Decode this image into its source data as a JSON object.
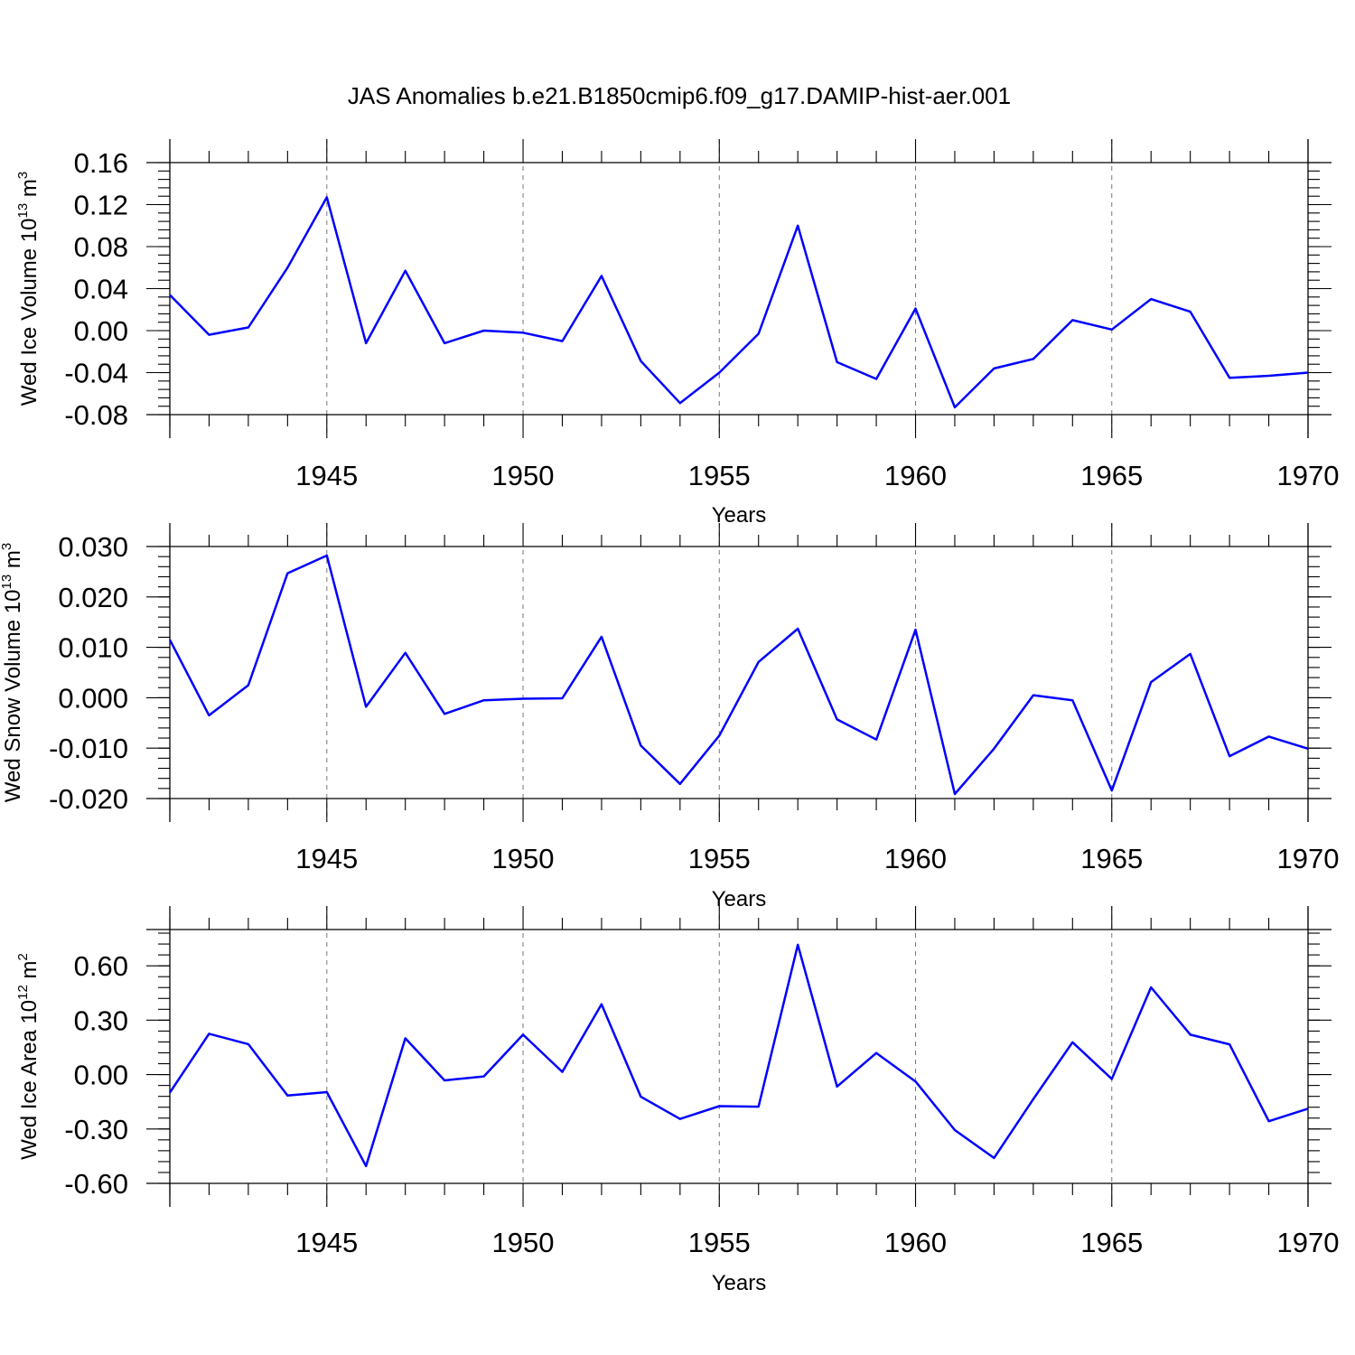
{
  "title": "JAS Anomalies b.e21.B1850cmip6.f09_g17.DAMIP-hist-aer.001",
  "colors": {
    "series": "#0000ff",
    "grid": "#777777",
    "axis": "#000000"
  },
  "chart_data": [
    {
      "type": "line",
      "ylabel": {
        "main": "Wed Ice Volume 10",
        "exp": "13",
        "unit": " m",
        "unit_exp": "3"
      },
      "xlabel": "Years",
      "xlim": [
        1941,
        1970
      ],
      "ylim": [
        -0.08,
        0.16
      ],
      "yticks": [
        -0.08,
        -0.04,
        0.0,
        0.04,
        0.08,
        0.12,
        0.16
      ],
      "ytick_labels": [
        "-0.08",
        "-0.04",
        "0.00",
        "0.04",
        "0.08",
        "0.12",
        "0.16"
      ],
      "yminor_step": 0.008,
      "xticks": [
        1945,
        1950,
        1955,
        1960,
        1965,
        1970
      ],
      "xtick_labels": [
        "1945",
        "1950",
        "1955",
        "1960",
        "1965",
        "1970"
      ],
      "grid": "x-major dashed",
      "x": [
        1941,
        1942,
        1943,
        1944,
        1945,
        1946,
        1947,
        1948,
        1949,
        1950,
        1951,
        1952,
        1953,
        1954,
        1955,
        1956,
        1957,
        1958,
        1959,
        1960,
        1961,
        1962,
        1963,
        1964,
        1965,
        1966,
        1967,
        1968,
        1969,
        1970
      ],
      "y": [
        0.034,
        -0.004,
        0.003,
        0.06,
        0.127,
        -0.012,
        0.057,
        -0.012,
        0.0,
        -0.002,
        -0.01,
        0.052,
        -0.029,
        -0.069,
        -0.04,
        -0.003,
        0.1,
        -0.03,
        -0.046,
        0.021,
        -0.073,
        -0.036,
        -0.027,
        0.01,
        0.001,
        0.03,
        0.018,
        -0.045,
        -0.043,
        -0.04
      ]
    },
    {
      "type": "line",
      "ylabel": {
        "main": "Wed Snow Volume 10",
        "exp": "13",
        "unit": " m",
        "unit_exp": "3"
      },
      "xlabel": "Years",
      "xlim": [
        1941,
        1970
      ],
      "ylim": [
        -0.02,
        0.03
      ],
      "yticks": [
        -0.02,
        -0.01,
        0.0,
        0.01,
        0.02,
        0.03
      ],
      "ytick_labels": [
        "-0.020",
        "-0.010",
        "0.000",
        "0.010",
        "0.020",
        "0.030"
      ],
      "yminor_step": 0.002,
      "xticks": [
        1945,
        1950,
        1955,
        1960,
        1965,
        1970
      ],
      "xtick_labels": [
        "1945",
        "1950",
        "1955",
        "1960",
        "1965",
        "1970"
      ],
      "grid": "x-major dashed",
      "x": [
        1941,
        1942,
        1943,
        1944,
        1945,
        1946,
        1947,
        1948,
        1949,
        1950,
        1951,
        1952,
        1953,
        1954,
        1955,
        1956,
        1957,
        1958,
        1959,
        1960,
        1961,
        1962,
        1963,
        1964,
        1965,
        1966,
        1967,
        1968,
        1969,
        1970
      ],
      "y": [
        0.0115,
        -0.0035,
        0.0025,
        0.0247,
        0.0282,
        -0.0018,
        0.0089,
        -0.0032,
        -0.0005,
        -0.0002,
        -0.0001,
        0.0121,
        -0.0095,
        -0.0171,
        -0.0075,
        0.0071,
        0.0137,
        -0.0043,
        -0.0083,
        0.0135,
        -0.0191,
        -0.0101,
        0.0005,
        -0.0005,
        -0.0184,
        0.0031,
        0.0087,
        -0.0116,
        -0.0077,
        -0.0101
      ]
    },
    {
      "type": "line",
      "ylabel": {
        "main": "Wed Ice Area 10",
        "exp": "12",
        "unit": " m",
        "unit_exp": "2"
      },
      "xlabel": "Years",
      "xlim": [
        1941,
        1970
      ],
      "ylim": [
        -0.6,
        0.8
      ],
      "yticks": [
        -0.6,
        -0.3,
        0.0,
        0.3,
        0.6
      ],
      "ytick_labels": [
        "-0.60",
        "-0.30",
        "0.00",
        "0.30",
        "0.60"
      ],
      "yminor_step": 0.06,
      "xticks": [
        1945,
        1950,
        1955,
        1960,
        1965,
        1970
      ],
      "xtick_labels": [
        "1945",
        "1950",
        "1955",
        "1960",
        "1965",
        "1970"
      ],
      "grid": "x-major dashed",
      "x": [
        1941,
        1942,
        1943,
        1944,
        1945,
        1946,
        1947,
        1948,
        1949,
        1950,
        1951,
        1952,
        1953,
        1954,
        1955,
        1956,
        1957,
        1958,
        1959,
        1960,
        1961,
        1962,
        1963,
        1964,
        1965,
        1966,
        1967,
        1968,
        1969,
        1970
      ],
      "y": [
        -0.1,
        0.225,
        0.168,
        -0.115,
        -0.097,
        -0.505,
        0.2,
        -0.032,
        -0.01,
        0.22,
        0.015,
        0.388,
        -0.122,
        -0.245,
        -0.174,
        -0.177,
        0.716,
        -0.066,
        0.119,
        -0.038,
        -0.306,
        -0.46,
        -0.135,
        0.178,
        -0.024,
        0.481,
        0.22,
        0.167,
        -0.257,
        -0.188
      ]
    }
  ]
}
